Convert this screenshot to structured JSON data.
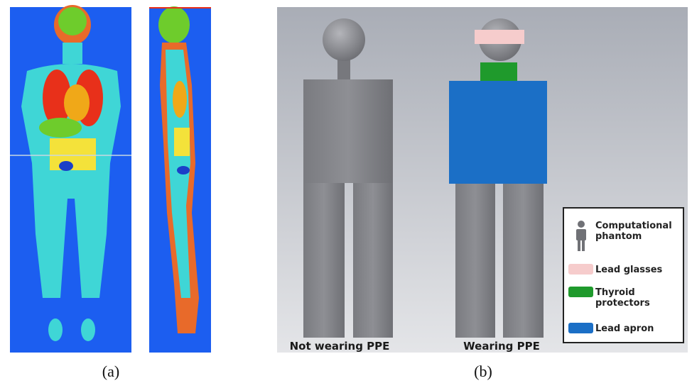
{
  "panels": {
    "a": {
      "label": "(a)"
    },
    "b": {
      "label": "(b)",
      "phantoms": [
        "Not wearing PPE",
        "Wearing PPE"
      ],
      "legend": [
        "Computational phantom",
        "Lead glasses",
        "Thyroid protectors",
        "Lead apron"
      ]
    }
  }
}
